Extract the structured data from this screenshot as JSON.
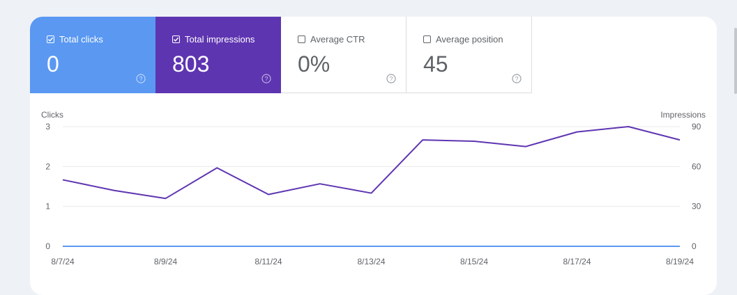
{
  "metrics": [
    {
      "label": "Total clicks",
      "value": "0",
      "checked": true
    },
    {
      "label": "Total impressions",
      "value": "803",
      "checked": true
    },
    {
      "label": "Average CTR",
      "value": "0%",
      "checked": false
    },
    {
      "label": "Average position",
      "value": "45",
      "checked": false
    }
  ],
  "colors": {
    "clicks": "#5a98f2",
    "impressions": "#5e35b1"
  },
  "chart_data": {
    "type": "line",
    "left_axis_label": "Clicks",
    "right_axis_label": "Impressions",
    "left_ylim": [
      0,
      3
    ],
    "right_ylim": [
      0,
      90
    ],
    "left_ticks": [
      "0",
      "1",
      "2",
      "3"
    ],
    "right_ticks": [
      "0",
      "30",
      "60",
      "90"
    ],
    "x": [
      "8/7/24",
      "8/8/24",
      "8/9/24",
      "8/10/24",
      "8/11/24",
      "8/12/24",
      "8/13/24",
      "8/14/24",
      "8/15/24",
      "8/16/24",
      "8/17/24",
      "8/18/24",
      "8/19/24"
    ],
    "x_tick_labels": [
      "8/7/24",
      "8/9/24",
      "8/11/24",
      "8/13/24",
      "8/15/24",
      "8/17/24",
      "8/19/24"
    ],
    "grid": true,
    "series": [
      {
        "name": "Clicks",
        "axis": "left",
        "color": "#5a98f2",
        "values": [
          0,
          0,
          0,
          0,
          0,
          0,
          0,
          0,
          0,
          0,
          0,
          0,
          0
        ]
      },
      {
        "name": "Impressions",
        "axis": "right",
        "color": "#5e35b1",
        "values": [
          50,
          42,
          36,
          59,
          39,
          47,
          40,
          80,
          79,
          75,
          86,
          90,
          80
        ]
      }
    ]
  }
}
